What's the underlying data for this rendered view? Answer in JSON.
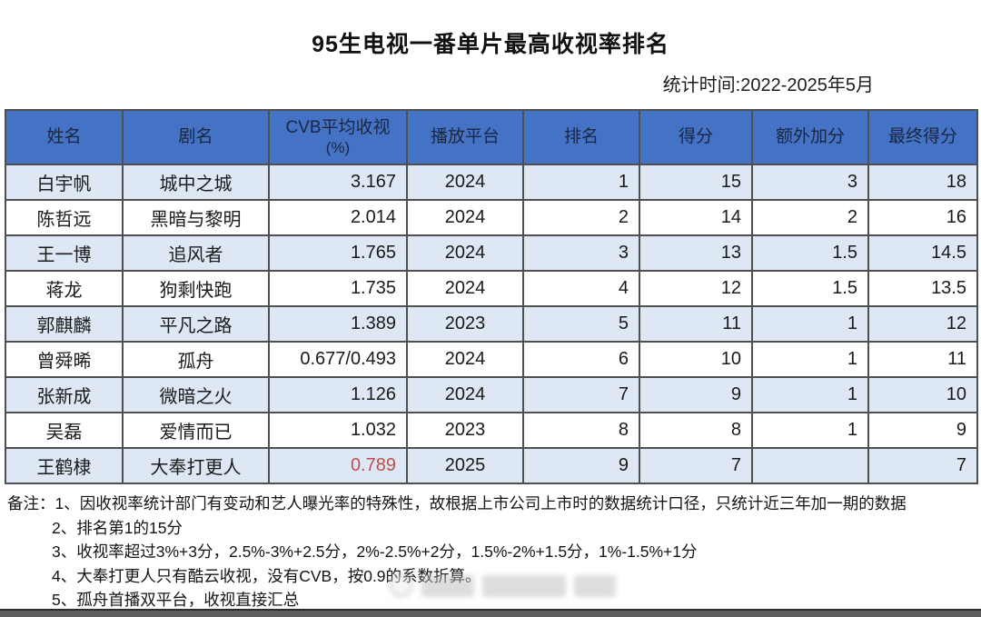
{
  "page": {
    "title": "95生电视一番单片最高收视率排名",
    "subtitle": "统计时间:2022-2025年5月"
  },
  "chart_data": {
    "type": "table",
    "title": "95生电视一番单片最高收视率排名",
    "subtitle": "统计时间:2022-2025年5月",
    "columns": [
      {
        "label": "姓名",
        "align": "center"
      },
      {
        "label": "剧名",
        "align": "center"
      },
      {
        "label": "CVB平均收视",
        "sub": "(%)",
        "align": "right"
      },
      {
        "label": "播放平台",
        "align": "center"
      },
      {
        "label": "排名",
        "align": "right"
      },
      {
        "label": "得分",
        "align": "right"
      },
      {
        "label": "额外加分",
        "align": "right"
      },
      {
        "label": "最终得分",
        "align": "right"
      }
    ],
    "rows": [
      [
        "白宇帆",
        "城中之城",
        "3.167",
        "2024",
        "1",
        "15",
        "3",
        "18"
      ],
      [
        "陈哲远",
        "黑暗与黎明",
        "2.014",
        "2024",
        "2",
        "14",
        "2",
        "16"
      ],
      [
        "王一博",
        "追风者",
        "1.765",
        "2024",
        "3",
        "13",
        "1.5",
        "14.5"
      ],
      [
        "蒋龙",
        "狗剩快跑",
        "1.735",
        "2024",
        "4",
        "12",
        "1.5",
        "13.5"
      ],
      [
        "郭麒麟",
        "平凡之路",
        "1.389",
        "2023",
        "5",
        "11",
        "1",
        "12"
      ],
      [
        "曾舜晞",
        "孤舟",
        "0.677/0.493",
        "2024",
        "6",
        "10",
        "1",
        "11"
      ],
      [
        "张新成",
        "微暗之火",
        "1.126",
        "2024",
        "7",
        "9",
        "1",
        "10"
      ],
      [
        "吴磊",
        "爱情而已",
        "1.032",
        "2023",
        "8",
        "8",
        "1",
        "9"
      ],
      [
        "王鹤棣",
        "大奉打更人",
        "0.789",
        "2025",
        "9",
        "7",
        "",
        "7"
      ]
    ],
    "red_cells": [
      [
        8,
        2
      ]
    ]
  },
  "notes": {
    "label": "备注：",
    "items": [
      "1、因收视率统计部门有变动和艺人曝光率的特殊性，故根据上市公司上市时的数据统计口径，只统计近三年加一期的数据",
      "2、排名第1的15分",
      "3、收视率超过3%+3分，2.5%-3%+2.5分，2%-2.5%+2分，1.5%-2%+1.5分，1%-1.5%+1分",
      "4、大奉打更人只有酷云收视，没有CVB，按0.9的系数折算。",
      "5、孤舟首播双平台，收视直接汇总"
    ]
  },
  "colors": {
    "header_bg": "#4472c4",
    "header_text": "#1b2740",
    "row_bg": "#ffffff",
    "row_alt_bg": "#dde8f4",
    "border": "#4f4f4f",
    "red_value": "#c0504d"
  }
}
